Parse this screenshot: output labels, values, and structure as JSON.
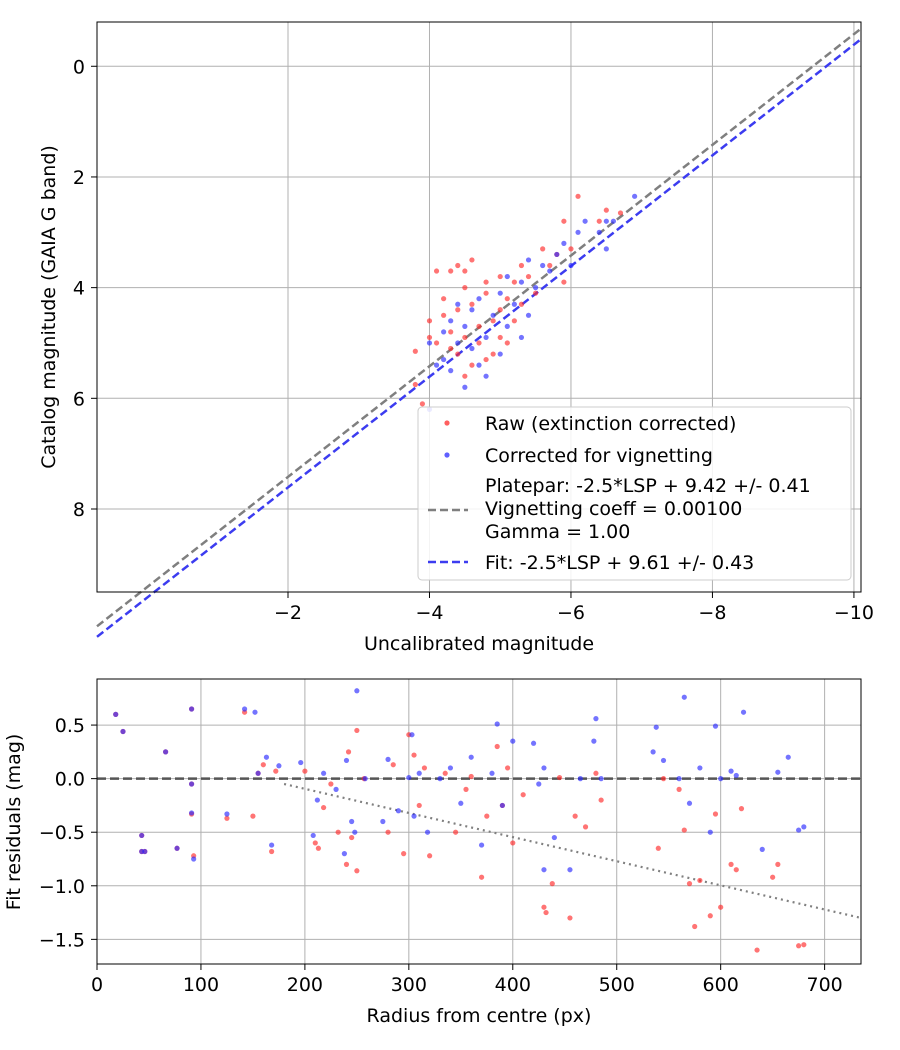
{
  "chart_data": [
    {
      "type": "scatter",
      "xlabel": "Uncalibrated magnitude",
      "ylabel": "Catalog magnitude (GAIA G band)",
      "xlim": [
        0.7,
        -10.1
      ],
      "ylim": [
        9.5,
        -0.8
      ],
      "x_ticks": [
        -2,
        -4,
        -6,
        -8,
        -10
      ],
      "x_tick_labels": [
        "−2",
        "−4",
        "−6",
        "−8",
        "−10"
      ],
      "y_ticks": [
        0,
        2,
        4,
        6,
        8
      ],
      "y_tick_labels": [
        "0",
        "2",
        "4",
        "6",
        "8"
      ],
      "grid": true,
      "legend_position": "lower-right",
      "legend": {
        "raw": "Raw (extinction corrected)",
        "corrected": "Corrected for vignetting",
        "platepar_lines": [
          "Platepar: -2.5*LSP + 9.42 +/- 0.41",
          "Vignetting coeff = 0.00100",
          "Gamma = 1.00"
        ],
        "fit": "Fit: -2.5*LSP + 9.61 +/- 0.43"
      },
      "colors": {
        "raw": "#ff2a2a",
        "corrected": "#2a2aff",
        "platepar": "#7f7f7f",
        "fit": "#3c3cf0"
      },
      "lines": [
        {
          "name": "platepar",
          "slope": 1,
          "intercept": 9.42
        },
        {
          "name": "fit",
          "slope": 1,
          "intercept": 9.61
        }
      ],
      "series": [
        {
          "name": "Raw (extinction corrected)",
          "points": [
            [
              -3.8,
              5.75
            ],
            [
              -3.9,
              6.1
            ],
            [
              -3.8,
              5.15
            ],
            [
              -4.0,
              4.9
            ],
            [
              -4.0,
              4.6
            ],
            [
              -4.1,
              5.0
            ],
            [
              -4.1,
              3.7
            ],
            [
              -4.2,
              4.2
            ],
            [
              -4.2,
              4.5
            ],
            [
              -4.3,
              5.1
            ],
            [
              -4.3,
              3.7
            ],
            [
              -4.3,
              4.8
            ],
            [
              -4.4,
              4.4
            ],
            [
              -4.4,
              3.6
            ],
            [
              -4.4,
              5.2
            ],
            [
              -4.5,
              4.0
            ],
            [
              -4.5,
              5.6
            ],
            [
              -4.5,
              4.9
            ],
            [
              -4.6,
              4.3
            ],
            [
              -4.6,
              5.4
            ],
            [
              -4.6,
              3.5
            ],
            [
              -4.7,
              4.7
            ],
            [
              -4.7,
              5.0
            ],
            [
              -4.8,
              4.1
            ],
            [
              -4.8,
              5.3
            ],
            [
              -4.8,
              3.9
            ],
            [
              -4.9,
              4.6
            ],
            [
              -4.9,
              5.2
            ],
            [
              -5.0,
              4.4
            ],
            [
              -5.0,
              3.8
            ],
            [
              -5.0,
              4.9
            ],
            [
              -5.1,
              4.2
            ],
            [
              -5.1,
              5.0
            ],
            [
              -5.2,
              3.9
            ],
            [
              -5.2,
              4.6
            ],
            [
              -5.3,
              3.6
            ],
            [
              -5.3,
              4.3
            ],
            [
              -5.4,
              3.8
            ],
            [
              -5.5,
              4.1
            ],
            [
              -5.6,
              3.3
            ],
            [
              -5.7,
              3.6
            ],
            [
              -5.8,
              3.4
            ],
            [
              -5.9,
              3.9
            ],
            [
              -6.0,
              3.3
            ],
            [
              -6.1,
              2.35
            ],
            [
              -6.4,
              2.8
            ],
            [
              -6.5,
              2.6
            ],
            [
              -6.7,
              2.65
            ],
            [
              -5.9,
              2.8
            ],
            [
              -4.5,
              3.7
            ]
          ]
        },
        {
          "name": "Corrected for vignetting",
          "points": [
            [
              -4.0,
              6.2
            ],
            [
              -4.1,
              5.4
            ],
            [
              -4.0,
              5.0
            ],
            [
              -4.2,
              4.8
            ],
            [
              -4.2,
              5.3
            ],
            [
              -4.3,
              4.6
            ],
            [
              -4.3,
              5.5
            ],
            [
              -4.4,
              4.3
            ],
            [
              -4.4,
              5.0
            ],
            [
              -4.5,
              5.8
            ],
            [
              -4.5,
              4.7
            ],
            [
              -4.6,
              5.1
            ],
            [
              -4.6,
              4.4
            ],
            [
              -4.7,
              5.4
            ],
            [
              -4.7,
              4.2
            ],
            [
              -4.8,
              4.9
            ],
            [
              -4.8,
              5.6
            ],
            [
              -4.9,
              4.5
            ],
            [
              -5.0,
              4.1
            ],
            [
              -5.0,
              5.2
            ],
            [
              -5.1,
              3.8
            ],
            [
              -5.1,
              4.7
            ],
            [
              -5.2,
              4.3
            ],
            [
              -5.3,
              3.9
            ],
            [
              -5.3,
              4.9
            ],
            [
              -5.4,
              3.5
            ],
            [
              -5.4,
              4.5
            ],
            [
              -5.5,
              4.0
            ],
            [
              -5.6,
              3.6
            ],
            [
              -5.7,
              3.7
            ],
            [
              -5.8,
              3.4
            ],
            [
              -5.9,
              3.2
            ],
            [
              -6.0,
              3.6
            ],
            [
              -6.1,
              3.0
            ],
            [
              -6.2,
              2.8
            ],
            [
              -6.4,
              3.0
            ],
            [
              -6.5,
              2.8
            ],
            [
              -6.6,
              2.8
            ],
            [
              -6.9,
              2.35
            ],
            [
              -6.5,
              3.3
            ]
          ]
        }
      ]
    },
    {
      "type": "scatter",
      "xlabel": "Radius from centre (px)",
      "ylabel": "Fit residuals (mag)",
      "xlim": [
        0,
        735
      ],
      "ylim": [
        -1.73,
        0.93
      ],
      "x_ticks": [
        0,
        100,
        200,
        300,
        400,
        500,
        600,
        700
      ],
      "x_tick_labels": [
        "0",
        "100",
        "200",
        "300",
        "400",
        "500",
        "600",
        "700"
      ],
      "y_ticks": [
        0.5,
        0.0,
        -0.5,
        -1.0,
        -1.5
      ],
      "y_tick_labels": [
        "0.5",
        "0.0",
        "−0.5",
        "−1.0",
        "−1.5"
      ],
      "grid": true,
      "lines": [
        {
          "name": "zero",
          "style": "dashed",
          "from": [
            0,
            0
          ],
          "to": [
            735,
            0
          ]
        },
        {
          "name": "vignetting-trend",
          "style": "dotted",
          "from": [
            180,
            -0.05
          ],
          "to": [
            735,
            -1.3
          ]
        }
      ],
      "series": [
        {
          "name": "raw-residuals",
          "points": [
            [
              18,
              0.6
            ],
            [
              25,
              0.44
            ],
            [
              43,
              -0.53
            ],
            [
              43,
              -0.68
            ],
            [
              46,
              -0.68
            ],
            [
              66,
              0.25
            ],
            [
              77,
              -0.65
            ],
            [
              91,
              0.65
            ],
            [
              91,
              -0.05
            ],
            [
              91,
              -0.33
            ],
            [
              93,
              -0.72
            ],
            [
              125,
              -0.37
            ],
            [
              142,
              0.62
            ],
            [
              150,
              -0.35
            ],
            [
              155,
              0.05
            ],
            [
              160,
              0.13
            ],
            [
              168,
              -0.68
            ],
            [
              172,
              0.07
            ],
            [
              200,
              0.07
            ],
            [
              210,
              -0.6
            ],
            [
              213,
              -0.65
            ],
            [
              218,
              -0.27
            ],
            [
              225,
              -0.05
            ],
            [
              232,
              -0.5
            ],
            [
              240,
              -0.8
            ],
            [
              242,
              0.25
            ],
            [
              245,
              -0.55
            ],
            [
              250,
              -0.86
            ],
            [
              250,
              0.45
            ],
            [
              257,
              0.0
            ],
            [
              280,
              -0.5
            ],
            [
              285,
              0.13
            ],
            [
              295,
              -0.7
            ],
            [
              300,
              0.41
            ],
            [
              305,
              0.22
            ],
            [
              310,
              -0.25
            ],
            [
              315,
              0.1
            ],
            [
              320,
              -0.72
            ],
            [
              335,
              0.05
            ],
            [
              345,
              -0.5
            ],
            [
              355,
              -0.1
            ],
            [
              360,
              0.02
            ],
            [
              370,
              -0.92
            ],
            [
              375,
              -0.35
            ],
            [
              385,
              0.3
            ],
            [
              390,
              -0.25
            ],
            [
              395,
              0.1
            ],
            [
              400,
              -0.6
            ],
            [
              410,
              -0.15
            ],
            [
              430,
              -1.2
            ],
            [
              432,
              -1.25
            ],
            [
              438,
              -0.98
            ],
            [
              445,
              0.01
            ],
            [
              455,
              -1.3
            ],
            [
              460,
              -0.35
            ],
            [
              470,
              -0.45
            ],
            [
              480,
              0.05
            ],
            [
              485,
              -0.2
            ],
            [
              540,
              -0.65
            ],
            [
              545,
              0.0
            ],
            [
              560,
              -0.1
            ],
            [
              565,
              -0.48
            ],
            [
              570,
              -0.98
            ],
            [
              575,
              -1.38
            ],
            [
              580,
              -0.95
            ],
            [
              590,
              -1.28
            ],
            [
              595,
              -0.33
            ],
            [
              600,
              -1.2
            ],
            [
              610,
              -0.8
            ],
            [
              615,
              -0.85
            ],
            [
              620,
              -0.28
            ],
            [
              635,
              -1.6
            ],
            [
              650,
              -0.92
            ],
            [
              655,
              -0.8
            ],
            [
              675,
              -1.56
            ],
            [
              680,
              -1.55
            ]
          ]
        },
        {
          "name": "corrected-residuals",
          "points": [
            [
              18,
              0.6
            ],
            [
              25,
              0.44
            ],
            [
              43,
              -0.68
            ],
            [
              46,
              -0.68
            ],
            [
              43,
              -0.53
            ],
            [
              66,
              0.25
            ],
            [
              77,
              -0.65
            ],
            [
              91,
              0.65
            ],
            [
              91,
              -0.05
            ],
            [
              91,
              -0.32
            ],
            [
              93,
              -0.75
            ],
            [
              125,
              -0.33
            ],
            [
              142,
              0.65
            ],
            [
              152,
              0.62
            ],
            [
              155,
              0.05
            ],
            [
              163,
              0.2
            ],
            [
              168,
              -0.62
            ],
            [
              175,
              0.12
            ],
            [
              196,
              0.15
            ],
            [
              208,
              -0.53
            ],
            [
              212,
              -0.2
            ],
            [
              218,
              0.05
            ],
            [
              230,
              -0.1
            ],
            [
              238,
              -0.7
            ],
            [
              240,
              0.17
            ],
            [
              245,
              -0.4
            ],
            [
              248,
              -0.5
            ],
            [
              250,
              0.82
            ],
            [
              258,
              0.0
            ],
            [
              275,
              -0.4
            ],
            [
              280,
              0.18
            ],
            [
              290,
              -0.3
            ],
            [
              300,
              0.01
            ],
            [
              303,
              0.41
            ],
            [
              305,
              -0.35
            ],
            [
              310,
              0.05
            ],
            [
              318,
              -0.5
            ],
            [
              330,
              0.0
            ],
            [
              340,
              0.1
            ],
            [
              350,
              -0.23
            ],
            [
              360,
              0.2
            ],
            [
              370,
              -0.62
            ],
            [
              380,
              0.05
            ],
            [
              385,
              0.51
            ],
            [
              390,
              -0.25
            ],
            [
              400,
              0.35
            ],
            [
              420,
              0.33
            ],
            [
              425,
              -0.05
            ],
            [
              430,
              -0.85
            ],
            [
              430,
              0.1
            ],
            [
              440,
              -0.55
            ],
            [
              455,
              -0.85
            ],
            [
              465,
              0.0
            ],
            [
              478,
              0.35
            ],
            [
              480,
              0.56
            ],
            [
              485,
              0.0
            ],
            [
              535,
              0.25
            ],
            [
              538,
              0.48
            ],
            [
              545,
              0.17
            ],
            [
              560,
              0.0
            ],
            [
              565,
              0.76
            ],
            [
              570,
              -0.23
            ],
            [
              580,
              0.1
            ],
            [
              590,
              -0.5
            ],
            [
              595,
              0.49
            ],
            [
              600,
              0.0
            ],
            [
              610,
              0.07
            ],
            [
              615,
              0.03
            ],
            [
              622,
              0.62
            ],
            [
              640,
              -0.66
            ],
            [
              655,
              0.06
            ],
            [
              665,
              0.2
            ],
            [
              675,
              -0.48
            ],
            [
              680,
              -0.45
            ]
          ]
        }
      ]
    }
  ]
}
